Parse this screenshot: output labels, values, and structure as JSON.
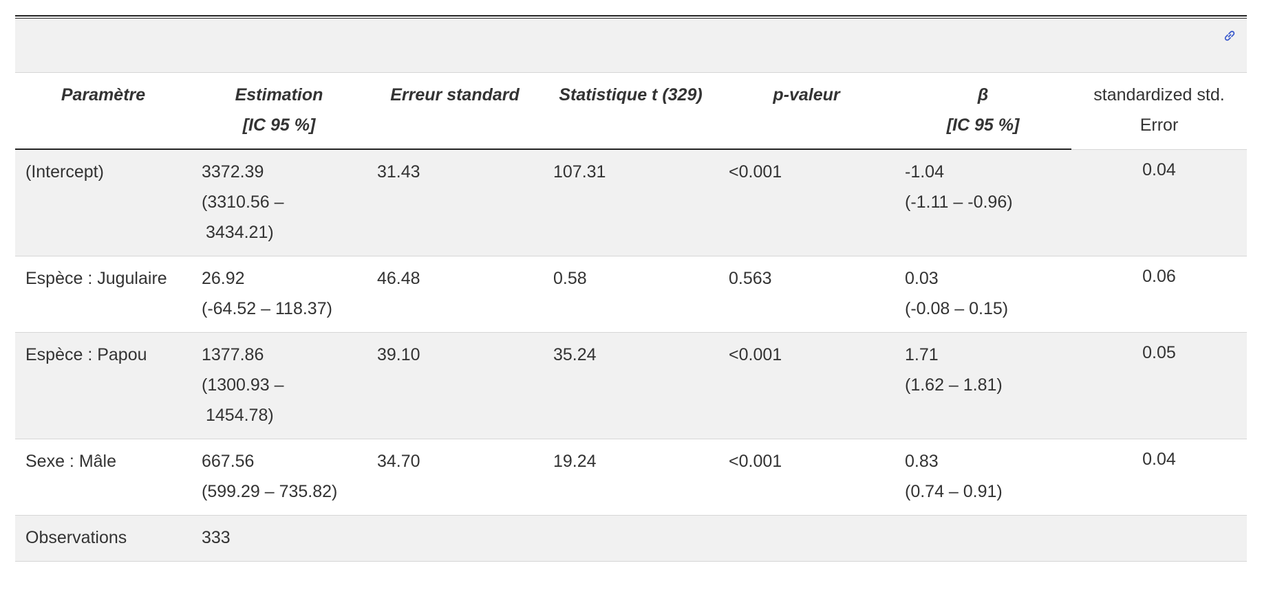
{
  "table": {
    "headers": [
      {
        "line1": "Paramètre",
        "line2": ""
      },
      {
        "line1": "Estimation",
        "line2": "[IC 95 %]"
      },
      {
        "line1": "Erreur standard",
        "line2": ""
      },
      {
        "line1": "Statistique t (329)",
        "line2": ""
      },
      {
        "line1": "p-valeur",
        "line2": ""
      },
      {
        "line1": "β",
        "line2": "[IC 95 %]"
      },
      {
        "line1": "standardized std.",
        "line2": "Error"
      }
    ],
    "rows": [
      {
        "parameter": "(Intercept)",
        "estimate": "3372.39",
        "estimate_ci_a": "(3310.56 –",
        "estimate_ci_b": "3434.21)",
        "se": "31.43",
        "t": "107.31",
        "p": "<0.001",
        "beta": "-1.04",
        "beta_ci": "(-1.11 – -0.96)",
        "std_se": "0.04"
      },
      {
        "parameter": "Espèce : Jugulaire",
        "estimate": "26.92",
        "estimate_ci_a": "(-64.52 – 118.37)",
        "estimate_ci_b": "",
        "se": "46.48",
        "t": "0.58",
        "p": "0.563",
        "beta": "0.03",
        "beta_ci": "(-0.08 – 0.15)",
        "std_se": "0.06"
      },
      {
        "parameter": "Espèce : Papou",
        "estimate": "1377.86",
        "estimate_ci_a": "(1300.93 –",
        "estimate_ci_b": "1454.78)",
        "se": "39.10",
        "t": "35.24",
        "p": "<0.001",
        "beta": "1.71",
        "beta_ci": "(1.62 – 1.81)",
        "std_se": "0.05"
      },
      {
        "parameter": "Sexe : Mâle",
        "estimate": "667.56",
        "estimate_ci_a": "(599.29 – 735.82)",
        "estimate_ci_b": "",
        "se": "34.70",
        "t": "19.24",
        "p": "<0.001",
        "beta": "0.83",
        "beta_ci": "(0.74 – 0.91)",
        "std_se": "0.04"
      }
    ],
    "footer": {
      "label": "Observations",
      "value": "333"
    }
  },
  "icons": {
    "anchor": "link-icon"
  },
  "colors": {
    "shaded_row": "#f1f1f1",
    "link_icon": "#3b5bcc"
  }
}
